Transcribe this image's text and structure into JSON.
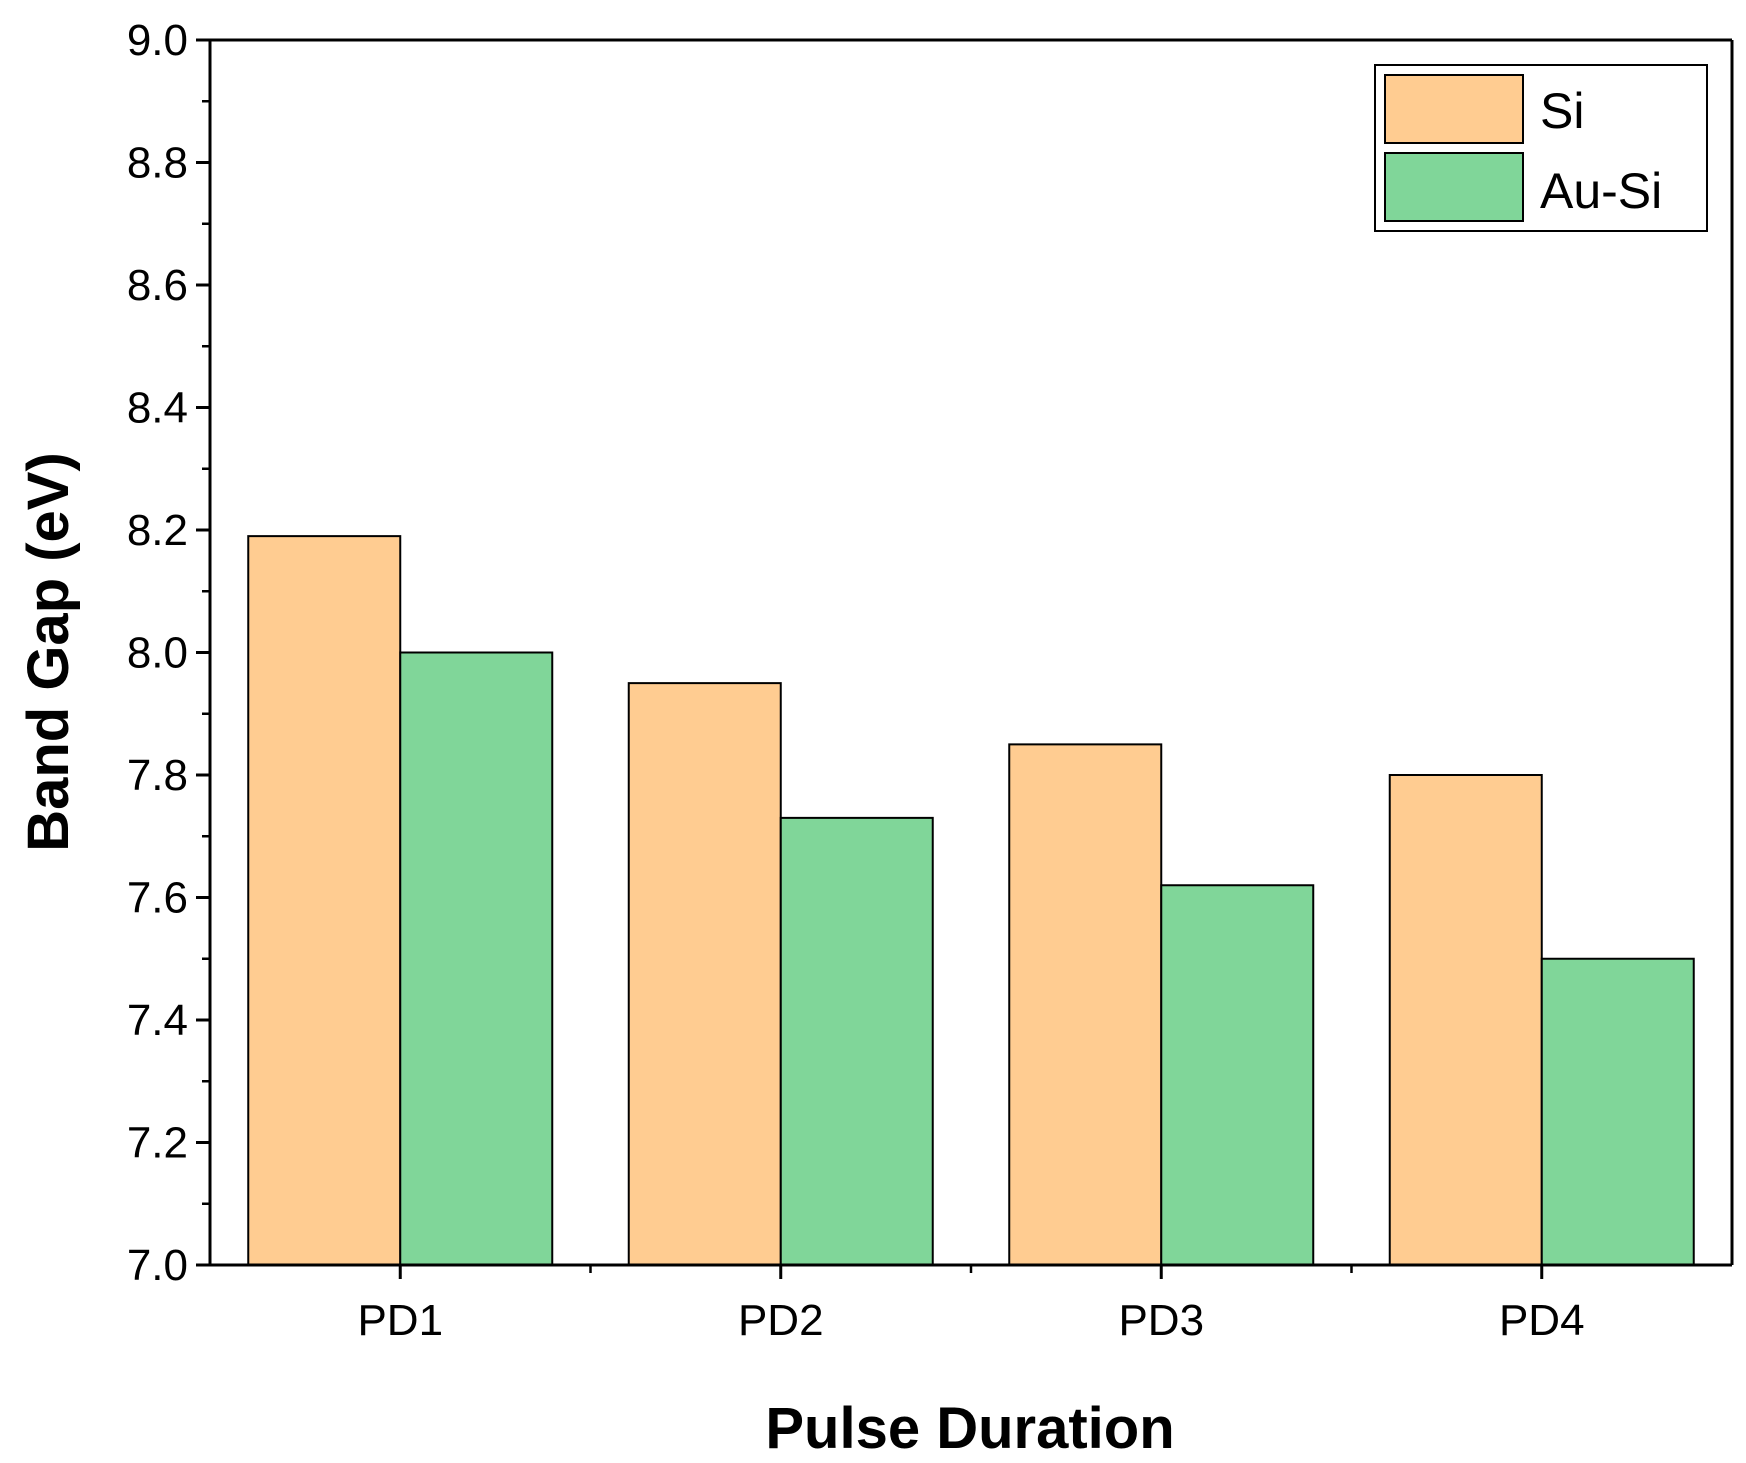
{
  "chart_data": {
    "type": "bar",
    "title": "",
    "xlabel": "Pulse Duration",
    "ylabel": "Band Gap (eV)",
    "categories": [
      "PD1",
      "PD2",
      "PD3",
      "PD4"
    ],
    "series": [
      {
        "name": "Si",
        "values": [
          8.19,
          7.95,
          7.85,
          7.8
        ],
        "color": "#FFCC91"
      },
      {
        "name": "Au-Si",
        "values": [
          8.0,
          7.73,
          7.62,
          7.5
        ],
        "color": "#80D699"
      }
    ],
    "ylim": [
      7.0,
      9.0
    ],
    "ytick_labels": [
      "7.0",
      "7.2",
      "7.4",
      "7.6",
      "7.8",
      "8.0",
      "8.2",
      "8.4",
      "8.6",
      "8.8",
      "9.0"
    ],
    "grid": false,
    "legend_position": "top-right",
    "colors": {
      "axis": "#000000",
      "bar_outline": "#000000"
    }
  }
}
